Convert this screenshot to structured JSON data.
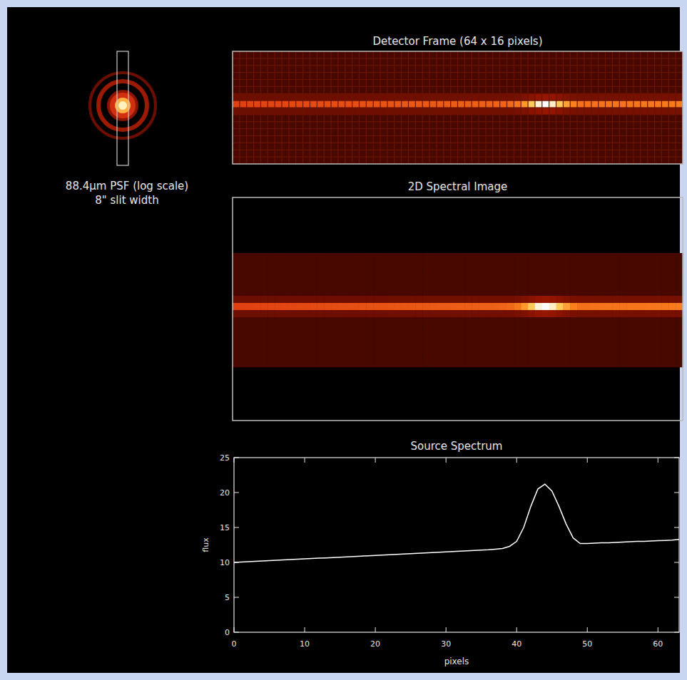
{
  "psf": {
    "label": "88.4μm PSF (log scale)",
    "slit_label": "8\" slit width"
  },
  "detector_frame": {
    "title": "Detector Frame (64 x 16 pixels)",
    "columns": 64,
    "rows": 16
  },
  "spectral_image": {
    "title": "2D Spectral Image"
  },
  "chart_data": {
    "type": "line",
    "title": "Source Spectrum",
    "x_label": "pixels",
    "y_label": "flux",
    "color": "#ffffff",
    "x": [
      0,
      1,
      2,
      3,
      4,
      5,
      6,
      7,
      8,
      9,
      10,
      11,
      12,
      13,
      14,
      15,
      16,
      17,
      18,
      19,
      20,
      21,
      22,
      23,
      24,
      25,
      26,
      27,
      28,
      29,
      30,
      31,
      32,
      33,
      34,
      35,
      36,
      37,
      38,
      39,
      40,
      41,
      42,
      43,
      44,
      45,
      46,
      47,
      48,
      49,
      50,
      51,
      52,
      53,
      54,
      55,
      56,
      57,
      58,
      59,
      60,
      61,
      62,
      63
    ],
    "values": [
      10.0,
      10.05,
      10.1,
      10.15,
      10.2,
      10.25,
      10.3,
      10.35,
      10.4,
      10.45,
      10.5,
      10.55,
      10.6,
      10.65,
      10.7,
      10.75,
      10.8,
      10.85,
      10.9,
      10.95,
      11.0,
      11.05,
      11.1,
      11.15,
      11.2,
      11.25,
      11.3,
      11.35,
      11.4,
      11.45,
      11.5,
      11.55,
      11.6,
      11.65,
      11.7,
      11.75,
      11.8,
      11.9,
      12.0,
      12.3,
      13.0,
      15.0,
      18.0,
      20.5,
      21.2,
      20.2,
      18.0,
      15.5,
      13.5,
      12.7,
      12.7,
      12.75,
      12.8,
      12.8,
      12.85,
      12.9,
      12.95,
      13.0,
      13.0,
      13.05,
      13.1,
      13.15,
      13.2,
      13.3
    ],
    "xlim": [
      0,
      63
    ],
    "ylim": [
      0,
      25
    ],
    "xticks": [
      0,
      10,
      20,
      30,
      40,
      50,
      60
    ],
    "yticks": [
      0,
      5,
      10,
      15,
      20,
      25
    ]
  }
}
